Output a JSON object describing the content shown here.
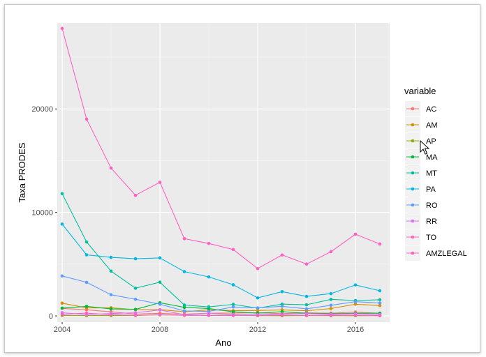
{
  "cursor_icon": "mouse-pointer-icon",
  "chart_data": {
    "type": "line",
    "xlabel": "Ano",
    "ylabel": "Taxa PRODES",
    "xlim": [
      2003.8,
      2017.4
    ],
    "ylim": [
      -600,
      28300
    ],
    "x_ticks": [
      2004,
      2008,
      2012,
      2016
    ],
    "y_ticks": [
      0,
      10000,
      20000
    ],
    "y_tick_labels": [
      "0",
      "10000",
      "20000"
    ],
    "grid": true,
    "legend": {
      "title": "variable",
      "placement": "right"
    },
    "x": [
      2004,
      2005,
      2006,
      2007,
      2008,
      2009,
      2010,
      2011,
      2012,
      2013,
      2014,
      2015,
      2016,
      2017
    ],
    "series": [
      {
        "name": "AC",
        "color": "#F8766D",
        "values": [
          728,
          592,
          398,
          184,
          254,
          167,
          259,
          280,
          305,
          221,
          309,
          264,
          372,
          257
        ]
      },
      {
        "name": "AM",
        "color": "#D39200",
        "values": [
          1232,
          775,
          788,
          610,
          604,
          405,
          595,
          502,
          523,
          583,
          500,
          712,
          1129,
          1001
        ]
      },
      {
        "name": "AP",
        "color": "#93AA00",
        "values": [
          46,
          33,
          30,
          39,
          100,
          70,
          53,
          66,
          27,
          23,
          31,
          25,
          17,
          24
        ]
      },
      {
        "name": "MA",
        "color": "#00BA38",
        "values": [
          755,
          922,
          674,
          631,
          1271,
          828,
          712,
          396,
          269,
          403,
          257,
          209,
          258,
          265
        ]
      },
      {
        "name": "MT",
        "color": "#00C19F",
        "values": [
          11814,
          7145,
          4333,
          2678,
          3258,
          1049,
          871,
          1120,
          757,
          1139,
          1075,
          1601,
          1489,
          1561
        ]
      },
      {
        "name": "PA",
        "color": "#00B9E3",
        "values": [
          8870,
          5899,
          5659,
          5526,
          5607,
          4281,
          3770,
          3008,
          1741,
          2346,
          1887,
          2153,
          2992,
          2433
        ]
      },
      {
        "name": "RO",
        "color": "#619CFF",
        "values": [
          3858,
          3244,
          2049,
          1611,
          1136,
          482,
          435,
          865,
          773,
          932,
          684,
          1030,
          1376,
          1243
        ]
      },
      {
        "name": "RR",
        "color": "#DB72FB",
        "values": [
          311,
          133,
          231,
          309,
          574,
          121,
          256,
          141,
          124,
          170,
          219,
          156,
          202,
          132
        ]
      },
      {
        "name": "TO",
        "color": "#FF61C3",
        "values": [
          158,
          271,
          124,
          63,
          107,
          61,
          49,
          40,
          52,
          74,
          50,
          57,
          58,
          31
        ]
      },
      {
        "name": "AMZLEGAL",
        "color": "#FF61C3",
        "values": [
          27772,
          19014,
          14286,
          11651,
          12911,
          7464,
          7000,
          6418,
          4571,
          5891,
          5012,
          6207,
          7893,
          6947
        ]
      }
    ]
  }
}
